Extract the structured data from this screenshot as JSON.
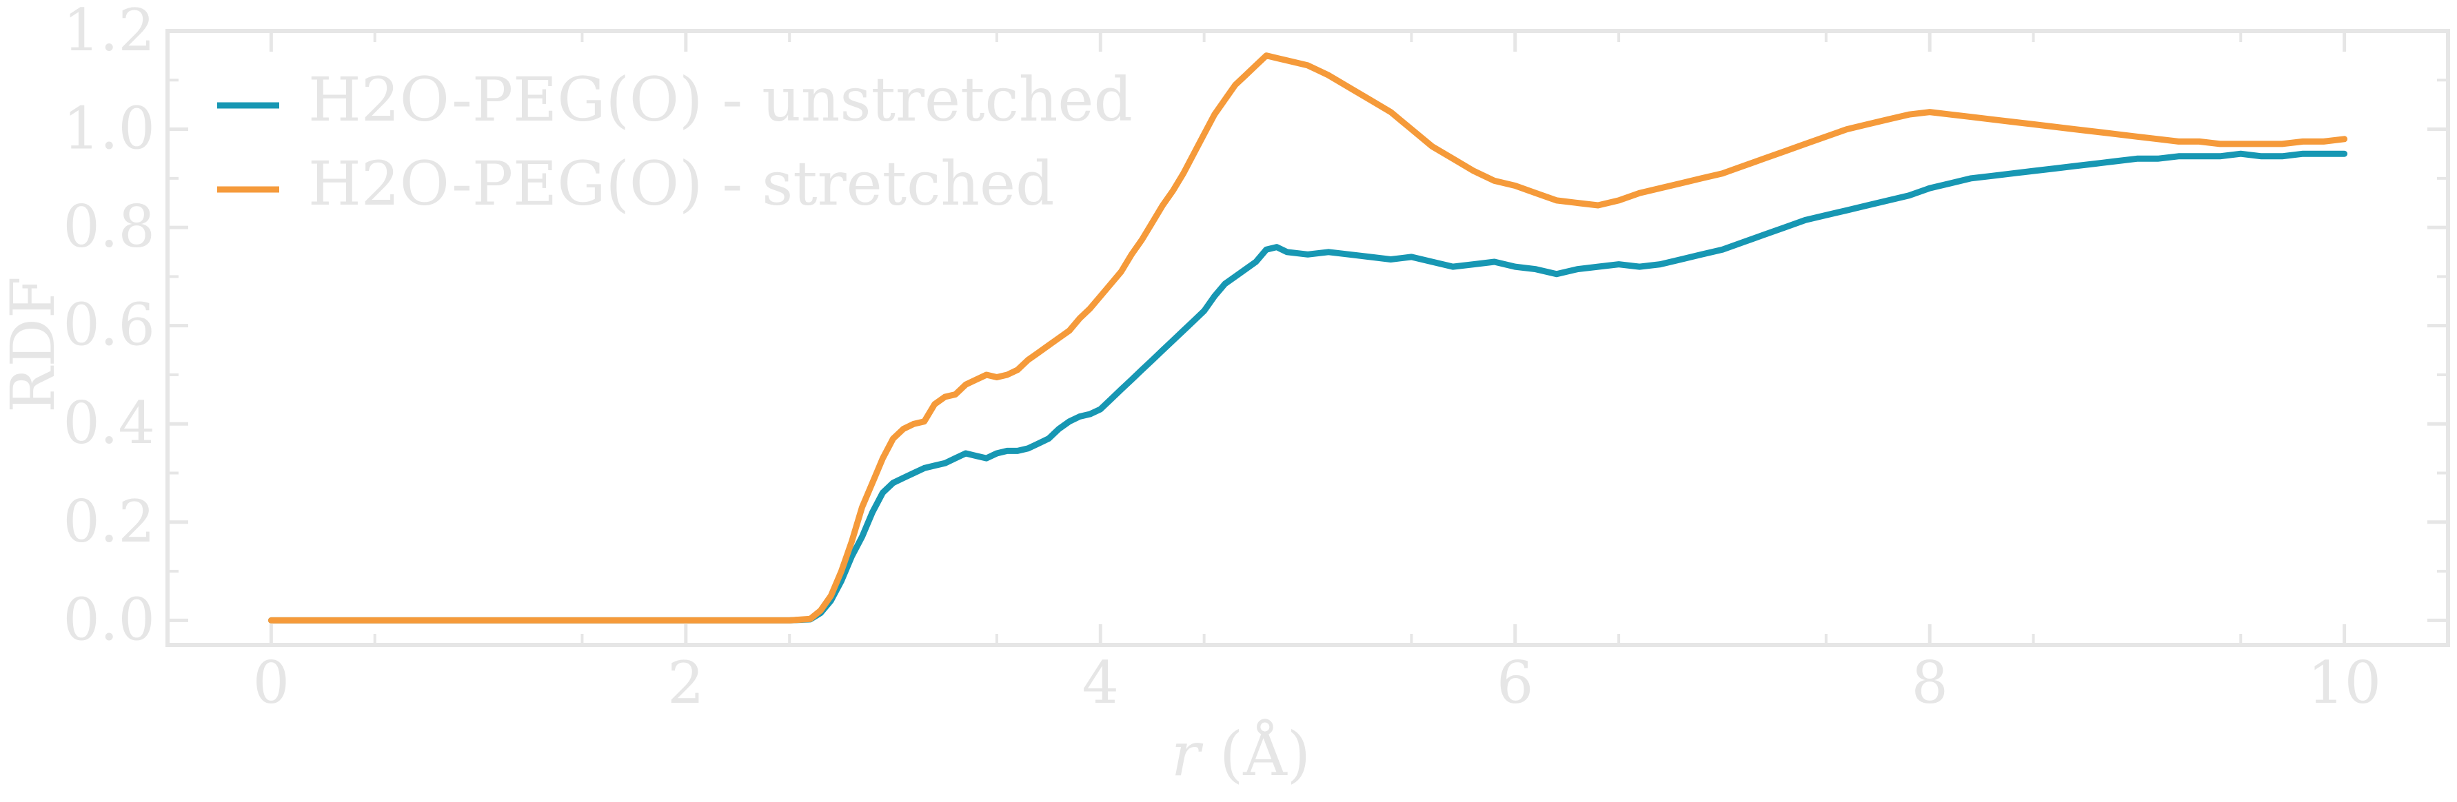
{
  "chart_data": {
    "type": "line",
    "title": "",
    "xlabel_italic": "r",
    "xlabel_unit": " (Å)",
    "ylabel": "RDF",
    "xlim": [
      -0.5,
      10.5
    ],
    "ylim": [
      -0.05,
      1.2
    ],
    "xticks": [
      0,
      2,
      4,
      6,
      8,
      10
    ],
    "xtick_labels": [
      "0",
      "2",
      "4",
      "6",
      "8",
      "10"
    ],
    "yticks": [
      0.0,
      0.2,
      0.4,
      0.6,
      0.8,
      1.0,
      1.2
    ],
    "ytick_labels": [
      "0.0",
      "0.2",
      "0.4",
      "0.6",
      "0.8",
      "1.0",
      "1.2"
    ],
    "grid": false,
    "legend_position": "top-left",
    "axis_color": "#e6e6e6",
    "series": [
      {
        "name": "H2O-PEG(O) - unstretched",
        "color": "#1797b3",
        "x": [
          0,
          0.5,
          1.0,
          1.5,
          2.0,
          2.5,
          2.6,
          2.65,
          2.7,
          2.75,
          2.8,
          2.85,
          2.9,
          2.95,
          3.0,
          3.05,
          3.1,
          3.15,
          3.2,
          3.25,
          3.3,
          3.35,
          3.4,
          3.45,
          3.5,
          3.55,
          3.6,
          3.65,
          3.7,
          3.75,
          3.8,
          3.85,
          3.9,
          3.95,
          4.0,
          4.05,
          4.1,
          4.15,
          4.2,
          4.25,
          4.3,
          4.35,
          4.4,
          4.45,
          4.5,
          4.55,
          4.6,
          4.65,
          4.7,
          4.75,
          4.8,
          4.85,
          4.9,
          5.0,
          5.1,
          5.2,
          5.3,
          5.4,
          5.5,
          5.6,
          5.7,
          5.8,
          5.9,
          6.0,
          6.1,
          6.2,
          6.3,
          6.4,
          6.5,
          6.6,
          6.7,
          6.8,
          6.9,
          7.0,
          7.1,
          7.2,
          7.3,
          7.4,
          7.5,
          7.6,
          7.7,
          7.8,
          7.9,
          8.0,
          8.1,
          8.2,
          8.3,
          8.4,
          8.5,
          8.6,
          8.7,
          8.8,
          8.9,
          9.0,
          9.1,
          9.2,
          9.3,
          9.4,
          9.5,
          9.6,
          9.7,
          9.8,
          9.9,
          10.0
        ],
        "y": [
          0.0,
          0.0,
          0.0,
          0.0,
          0.0,
          0.0,
          0.002,
          0.015,
          0.04,
          0.08,
          0.13,
          0.17,
          0.22,
          0.26,
          0.28,
          0.29,
          0.3,
          0.31,
          0.315,
          0.32,
          0.33,
          0.34,
          0.335,
          0.33,
          0.34,
          0.345,
          0.345,
          0.35,
          0.36,
          0.37,
          0.39,
          0.405,
          0.415,
          0.42,
          0.43,
          0.45,
          0.47,
          0.49,
          0.51,
          0.53,
          0.55,
          0.57,
          0.59,
          0.61,
          0.63,
          0.66,
          0.685,
          0.7,
          0.715,
          0.73,
          0.755,
          0.76,
          0.75,
          0.745,
          0.75,
          0.745,
          0.74,
          0.735,
          0.74,
          0.73,
          0.72,
          0.725,
          0.73,
          0.72,
          0.715,
          0.705,
          0.715,
          0.72,
          0.725,
          0.72,
          0.725,
          0.735,
          0.745,
          0.755,
          0.77,
          0.785,
          0.8,
          0.815,
          0.825,
          0.835,
          0.845,
          0.855,
          0.865,
          0.88,
          0.89,
          0.9,
          0.905,
          0.91,
          0.915,
          0.92,
          0.925,
          0.93,
          0.935,
          0.94,
          0.94,
          0.945,
          0.945,
          0.945,
          0.95,
          0.945,
          0.945,
          0.95,
          0.95,
          0.95
        ]
      },
      {
        "name": "H2O-PEG(O) - stretched",
        "color": "#f59a3a",
        "x": [
          0,
          0.5,
          1.0,
          1.5,
          2.0,
          2.5,
          2.6,
          2.65,
          2.7,
          2.75,
          2.8,
          2.85,
          2.9,
          2.95,
          3.0,
          3.05,
          3.1,
          3.15,
          3.2,
          3.25,
          3.3,
          3.35,
          3.4,
          3.45,
          3.5,
          3.55,
          3.6,
          3.65,
          3.7,
          3.75,
          3.8,
          3.85,
          3.9,
          3.95,
          4.0,
          4.05,
          4.1,
          4.15,
          4.2,
          4.25,
          4.3,
          4.35,
          4.4,
          4.45,
          4.5,
          4.55,
          4.6,
          4.65,
          4.7,
          4.75,
          4.8,
          4.85,
          4.9,
          5.0,
          5.1,
          5.2,
          5.3,
          5.4,
          5.5,
          5.6,
          5.7,
          5.8,
          5.9,
          6.0,
          6.1,
          6.2,
          6.3,
          6.4,
          6.5,
          6.6,
          6.7,
          6.8,
          6.9,
          7.0,
          7.1,
          7.2,
          7.3,
          7.4,
          7.5,
          7.6,
          7.7,
          7.8,
          7.9,
          8.0,
          8.1,
          8.2,
          8.3,
          8.4,
          8.5,
          8.6,
          8.7,
          8.8,
          8.9,
          9.0,
          9.1,
          9.2,
          9.3,
          9.4,
          9.5,
          9.6,
          9.7,
          9.8,
          9.9,
          10.0
        ],
        "y": [
          0.0,
          0.0,
          0.0,
          0.0,
          0.0,
          0.0,
          0.003,
          0.02,
          0.05,
          0.1,
          0.16,
          0.23,
          0.28,
          0.33,
          0.37,
          0.39,
          0.4,
          0.405,
          0.44,
          0.455,
          0.46,
          0.48,
          0.49,
          0.5,
          0.495,
          0.5,
          0.51,
          0.53,
          0.545,
          0.56,
          0.575,
          0.59,
          0.615,
          0.635,
          0.66,
          0.685,
          0.71,
          0.745,
          0.775,
          0.81,
          0.845,
          0.875,
          0.91,
          0.95,
          0.99,
          1.03,
          1.06,
          1.09,
          1.11,
          1.13,
          1.15,
          1.145,
          1.14,
          1.13,
          1.11,
          1.085,
          1.06,
          1.035,
          1.0,
          0.965,
          0.94,
          0.915,
          0.895,
          0.885,
          0.87,
          0.855,
          0.85,
          0.845,
          0.855,
          0.87,
          0.88,
          0.89,
          0.9,
          0.91,
          0.925,
          0.94,
          0.955,
          0.97,
          0.985,
          1.0,
          1.01,
          1.02,
          1.03,
          1.035,
          1.03,
          1.025,
          1.02,
          1.015,
          1.01,
          1.005,
          1.0,
          0.995,
          0.99,
          0.985,
          0.98,
          0.975,
          0.975,
          0.97,
          0.97,
          0.97,
          0.97,
          0.975,
          0.975,
          0.98
        ]
      }
    ]
  }
}
